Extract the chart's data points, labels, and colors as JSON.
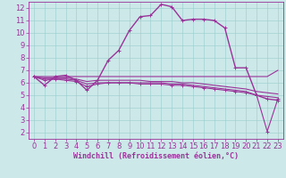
{
  "xlabel": "Windchill (Refroidissement éolien,°C)",
  "bg_color": "#cce8e8",
  "grid_color": "#99cccc",
  "line_color": "#993399",
  "spine_color": "#993399",
  "xlim": [
    -0.5,
    23.5
  ],
  "ylim": [
    1.5,
    12.5
  ],
  "xticks": [
    0,
    1,
    2,
    3,
    4,
    5,
    6,
    7,
    8,
    9,
    10,
    11,
    12,
    13,
    14,
    15,
    16,
    17,
    18,
    19,
    20,
    21,
    22,
    23
  ],
  "yticks": [
    2,
    3,
    4,
    5,
    6,
    7,
    8,
    9,
    10,
    11,
    12
  ],
  "tick_fontsize": 6,
  "xlabel_fontsize": 6,
  "series": [
    {
      "x": [
        0,
        1,
        2,
        3,
        4,
        5,
        6,
        7,
        8,
        9,
        10,
        11,
        12,
        13,
        14,
        15,
        16,
        17,
        18,
        19,
        20,
        21,
        22,
        23
      ],
      "y": [
        6.5,
        5.8,
        6.5,
        6.6,
        6.2,
        5.4,
        6.2,
        7.8,
        8.6,
        10.2,
        11.3,
        11.4,
        12.3,
        12.1,
        11.0,
        11.1,
        11.1,
        11.0,
        10.4,
        7.2,
        7.2,
        5.0,
        4.7,
        4.6
      ],
      "marker": "+",
      "markersize": 3.5,
      "lw": 1.0
    },
    {
      "x": [
        0,
        1,
        2,
        3,
        4,
        5,
        6,
        7,
        8,
        9,
        10,
        11,
        12,
        13,
        14,
        15,
        16,
        17,
        18,
        19,
        20,
        21,
        22,
        23
      ],
      "y": [
        6.5,
        6.5,
        6.5,
        6.5,
        6.5,
        6.5,
        6.5,
        6.5,
        6.5,
        6.5,
        6.5,
        6.5,
        6.5,
        6.5,
        6.5,
        6.5,
        6.5,
        6.5,
        6.5,
        6.5,
        6.5,
        6.5,
        6.5,
        7.0
      ],
      "marker": null,
      "markersize": 0,
      "lw": 0.8
    },
    {
      "x": [
        0,
        1,
        2,
        3,
        4,
        5,
        6,
        7,
        8,
        9,
        10,
        11,
        12,
        13,
        14,
        15,
        16,
        17,
        18,
        19,
        20,
        21,
        22,
        23
      ],
      "y": [
        6.5,
        6.4,
        6.4,
        6.4,
        6.3,
        6.1,
        6.2,
        6.2,
        6.2,
        6.2,
        6.2,
        6.1,
        6.1,
        6.1,
        6.0,
        6.0,
        5.9,
        5.8,
        5.7,
        5.6,
        5.5,
        5.3,
        5.2,
        5.1
      ],
      "marker": null,
      "markersize": 0,
      "lw": 0.8
    },
    {
      "x": [
        0,
        1,
        2,
        3,
        4,
        5,
        6,
        7,
        8,
        9,
        10,
        11,
        12,
        13,
        14,
        15,
        16,
        17,
        18,
        19,
        20,
        21,
        22,
        23
      ],
      "y": [
        6.5,
        6.3,
        6.3,
        6.3,
        6.2,
        5.9,
        6.0,
        6.0,
        6.0,
        6.0,
        6.0,
        6.0,
        6.0,
        5.9,
        5.9,
        5.8,
        5.7,
        5.6,
        5.5,
        5.4,
        5.3,
        5.0,
        4.9,
        4.8
      ],
      "marker": null,
      "markersize": 0,
      "lw": 0.8
    },
    {
      "x": [
        0,
        1,
        2,
        3,
        4,
        5,
        6,
        7,
        8,
        9,
        10,
        11,
        12,
        13,
        14,
        15,
        16,
        17,
        18,
        19,
        20,
        21,
        22,
        23
      ],
      "y": [
        6.5,
        6.2,
        6.3,
        6.2,
        6.1,
        5.7,
        5.9,
        6.0,
        6.0,
        6.0,
        5.9,
        5.9,
        5.9,
        5.8,
        5.8,
        5.7,
        5.6,
        5.5,
        5.4,
        5.3,
        5.2,
        5.0,
        2.1,
        4.7
      ],
      "marker": "+",
      "markersize": 2.5,
      "lw": 0.8
    }
  ]
}
